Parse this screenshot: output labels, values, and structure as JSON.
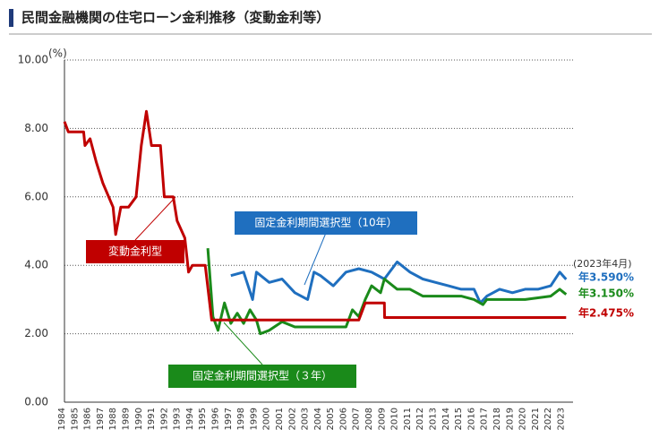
{
  "chart_data": {
    "type": "line",
    "title": "民間金融機関の住宅ローン金利推移（変動金利等）",
    "y_unit": "(%)",
    "date_note": "(2023年4月)",
    "xlim": [
      1984,
      2023.6
    ],
    "xticks": [
      1984,
      1985,
      1986,
      1987,
      1988,
      1989,
      1990,
      1991,
      1992,
      1993,
      1994,
      1995,
      1996,
      1997,
      1998,
      1999,
      2000,
      2001,
      2002,
      2003,
      2004,
      2005,
      2006,
      2007,
      2008,
      2009,
      2010,
      2011,
      2012,
      2013,
      2014,
      2015,
      2016,
      2017,
      2018,
      2019,
      2020,
      2021,
      2022,
      2023
    ],
    "ylim": [
      0,
      10
    ],
    "yticks": [
      {
        "value": 0,
        "label": "0.00"
      },
      {
        "value": 2,
        "label": "2.00"
      },
      {
        "value": 4,
        "label": "4.00"
      },
      {
        "value": 6,
        "label": "6.00"
      },
      {
        "value": 8,
        "label": "8.00"
      },
      {
        "value": 10,
        "label": "10.00"
      }
    ],
    "grid": true,
    "series": [
      {
        "name": "固定金利期間選択型（10年）",
        "color": "#1f6fbf",
        "end_label": "年3.590%",
        "x": [
          1997,
          1998,
          1998.7,
          1999,
          2000,
          2001,
          2002,
          2003,
          2003.5,
          2004,
          2005,
          2006,
          2007,
          2008,
          2009,
          2010,
          2011,
          2012,
          2013,
          2014,
          2015,
          2016,
          2016.5,
          2017,
          2018,
          2019,
          2020,
          2021,
          2022,
          2022.7,
          2023.2
        ],
        "values": [
          3.7,
          3.8,
          3.0,
          3.8,
          3.5,
          3.6,
          3.2,
          3.0,
          3.8,
          3.7,
          3.4,
          3.8,
          3.9,
          3.8,
          3.6,
          4.1,
          3.8,
          3.6,
          3.5,
          3.4,
          3.3,
          3.3,
          2.9,
          3.1,
          3.3,
          3.2,
          3.3,
          3.3,
          3.4,
          3.8,
          3.59
        ]
      },
      {
        "name": "固定金利期間選択型（３年）",
        "color": "#1a8a1a",
        "end_label": "年3.150%",
        "x": [
          1995.2,
          1995.6,
          1996,
          1996.5,
          1997,
          1997.5,
          1998,
          1998.5,
          1999,
          1999.3,
          2000,
          2001,
          2002,
          2003,
          2006,
          2006.5,
          2007,
          2007.5,
          2008,
          2008.7,
          2009,
          2010,
          2011,
          2012,
          2015,
          2016,
          2016.7,
          2017,
          2020,
          2022,
          2022.7,
          2023.2
        ],
        "values": [
          4.5,
          2.5,
          2.1,
          2.9,
          2.3,
          2.6,
          2.3,
          2.7,
          2.4,
          2.0,
          2.1,
          2.35,
          2.2,
          2.2,
          2.2,
          2.7,
          2.5,
          3.0,
          3.4,
          3.2,
          3.6,
          3.3,
          3.3,
          3.1,
          3.1,
          3.0,
          2.85,
          3.0,
          3.0,
          3.1,
          3.3,
          3.15
        ]
      },
      {
        "name": "変動金利型",
        "color": "#c00000",
        "end_label": "年2.475%",
        "x": [
          1984,
          1984.3,
          1985.5,
          1985.6,
          1986,
          1986.5,
          1987,
          1987.8,
          1988,
          1988.4,
          1989,
          1989.6,
          1990,
          1990.4,
          1990.8,
          1991.5,
          1991.8,
          1992.5,
          1992.8,
          1993.4,
          1993.7,
          1994,
          1995,
          1995.5,
          1996,
          2007,
          2007.2,
          2007.5,
          2009,
          2009.01,
          2023.2
        ],
        "values": [
          8.2,
          7.9,
          7.9,
          7.5,
          7.7,
          7.0,
          6.4,
          5.7,
          4.9,
          5.7,
          5.7,
          6.0,
          7.5,
          8.5,
          7.5,
          7.5,
          6.0,
          6.0,
          5.3,
          4.8,
          3.8,
          4.0,
          4.0,
          2.4,
          2.4,
          2.4,
          2.6,
          2.9,
          2.9,
          2.475,
          2.475
        ]
      }
    ]
  }
}
